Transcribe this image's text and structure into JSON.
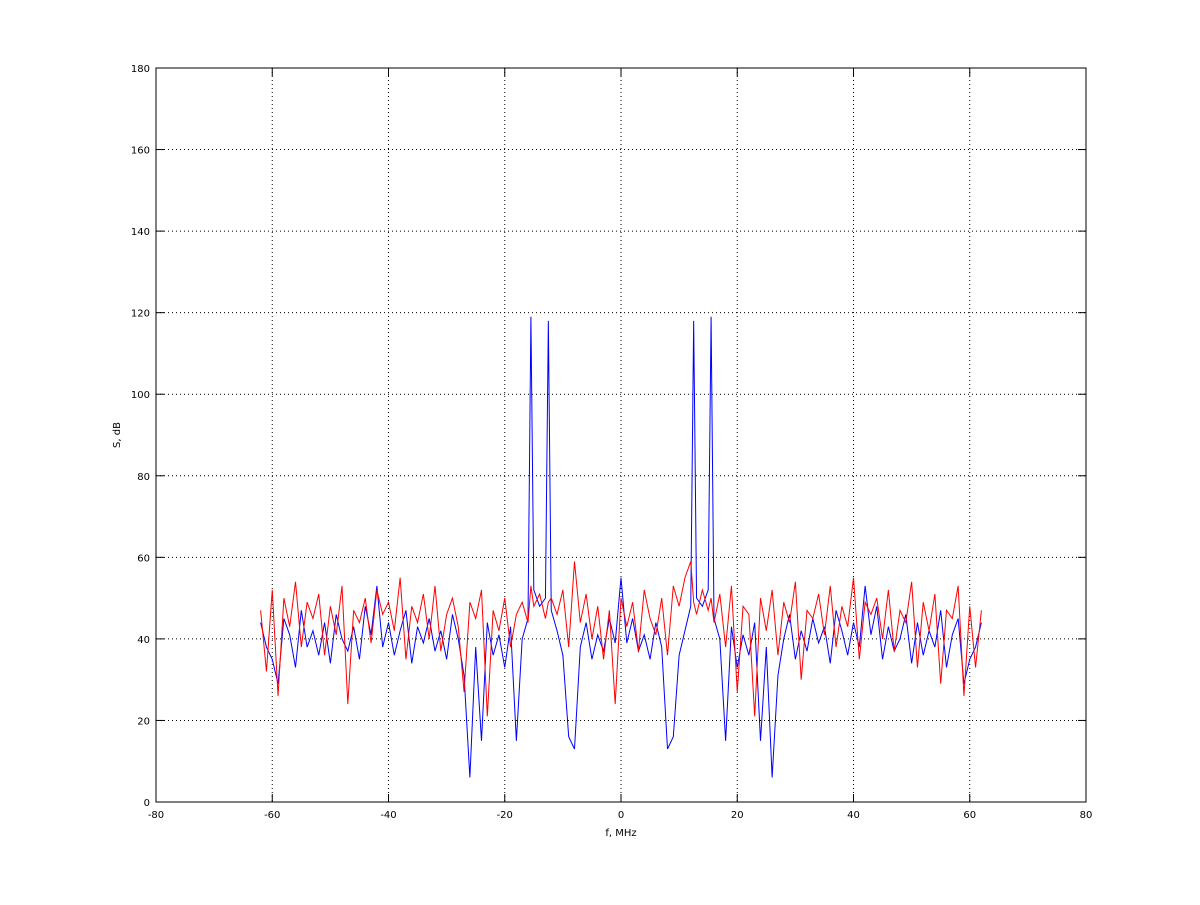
{
  "chart_data": {
    "type": "line",
    "xlabel": "f, MHz",
    "ylabel": "S, dB",
    "xlim": [
      -80,
      80
    ],
    "xticks": [
      -80,
      -60,
      -40,
      -20,
      0,
      20,
      40,
      60,
      80
    ],
    "ylim": [
      0,
      180
    ],
    "yticks": [
      0,
      20,
      40,
      60,
      80,
      100,
      120,
      140,
      160,
      180
    ],
    "grid": true,
    "x": [
      -62,
      -61,
      -60,
      -59,
      -58,
      -57,
      -56,
      -55,
      -54,
      -53,
      -52,
      -51,
      -50,
      -49,
      -48,
      -47,
      -46,
      -45,
      -44,
      -43,
      -42,
      -41,
      -40,
      -39,
      -38,
      -37,
      -36,
      -35,
      -34,
      -33,
      -32,
      -31,
      -30,
      -29,
      -28,
      -27,
      -26,
      -25,
      -24,
      -23,
      -22,
      -21,
      -20,
      -19,
      -18,
      -17,
      -16,
      -15.5,
      -15,
      -14,
      -13,
      -12.5,
      -12,
      -11,
      -10,
      -9,
      -8,
      -7,
      -6,
      -5,
      -4,
      -3,
      -2,
      -1,
      0,
      1,
      2,
      3,
      4,
      5,
      6,
      7,
      8,
      9,
      10,
      11,
      12,
      12.5,
      13,
      14,
      15,
      15.5,
      16,
      17,
      18,
      19,
      20,
      21,
      22,
      23,
      24,
      25,
      26,
      27,
      28,
      29,
      30,
      31,
      32,
      33,
      34,
      35,
      36,
      37,
      38,
      39,
      40,
      41,
      42,
      43,
      44,
      45,
      46,
      47,
      48,
      49,
      50,
      51,
      52,
      53,
      54,
      55,
      56,
      57,
      58,
      59,
      60,
      61,
      62
    ],
    "series": [
      {
        "color": "#0000ff",
        "values": [
          44,
          38,
          35,
          29,
          45,
          41,
          33,
          47,
          38,
          42,
          36,
          44,
          34,
          46,
          40,
          37,
          43,
          35,
          48,
          41,
          53,
          38,
          44,
          36,
          42,
          47,
          34,
          43,
          39,
          45,
          37,
          42,
          35,
          46,
          40,
          31,
          6,
          38,
          15,
          44,
          36,
          41,
          33,
          43,
          15,
          40,
          45,
          119,
          52,
          48,
          50,
          118,
          47,
          42,
          36,
          16,
          13,
          38,
          44,
          35,
          41,
          37,
          45,
          39,
          55,
          39,
          45,
          37,
          41,
          35,
          44,
          38,
          13,
          16,
          36,
          42,
          48,
          118,
          50,
          48,
          52,
          119,
          45,
          40,
          15,
          43,
          33,
          41,
          36,
          44,
          15,
          38,
          6,
          31,
          40,
          46,
          35,
          42,
          37,
          45,
          39,
          43,
          34,
          47,
          42,
          36,
          44,
          38,
          53,
          41,
          48,
          35,
          43,
          37,
          40,
          46,
          34,
          44,
          36,
          42,
          38,
          47,
          33,
          41,
          45,
          29,
          35,
          38,
          44
        ]
      },
      {
        "color": "#ff0000",
        "values": [
          47,
          32,
          52,
          26,
          50,
          43,
          54,
          38,
          49,
          45,
          51,
          36,
          48,
          41,
          53,
          24,
          47,
          44,
          50,
          39,
          52,
          46,
          49,
          42,
          55,
          35,
          48,
          44,
          51,
          40,
          53,
          37,
          46,
          50,
          43,
          27,
          49,
          45,
          52,
          21,
          47,
          42,
          50,
          38,
          46,
          49,
          44,
          53,
          48,
          51,
          45,
          49,
          50,
          46,
          52,
          38,
          59,
          44,
          51,
          40,
          48,
          35,
          47,
          24,
          50,
          43,
          49,
          37,
          52,
          45,
          41,
          50,
          36,
          53,
          48,
          55,
          59,
          49,
          46,
          52,
          47,
          50,
          44,
          51,
          38,
          53,
          27,
          48,
          46,
          21,
          50,
          42,
          52,
          36,
          49,
          44,
          54,
          30,
          47,
          45,
          51,
          41,
          53,
          38,
          48,
          43,
          55,
          35,
          49,
          46,
          50,
          40,
          52,
          37,
          47,
          44,
          54,
          33,
          49,
          42,
          51,
          29,
          47,
          45,
          53,
          26,
          48,
          33,
          47
        ]
      }
    ]
  }
}
